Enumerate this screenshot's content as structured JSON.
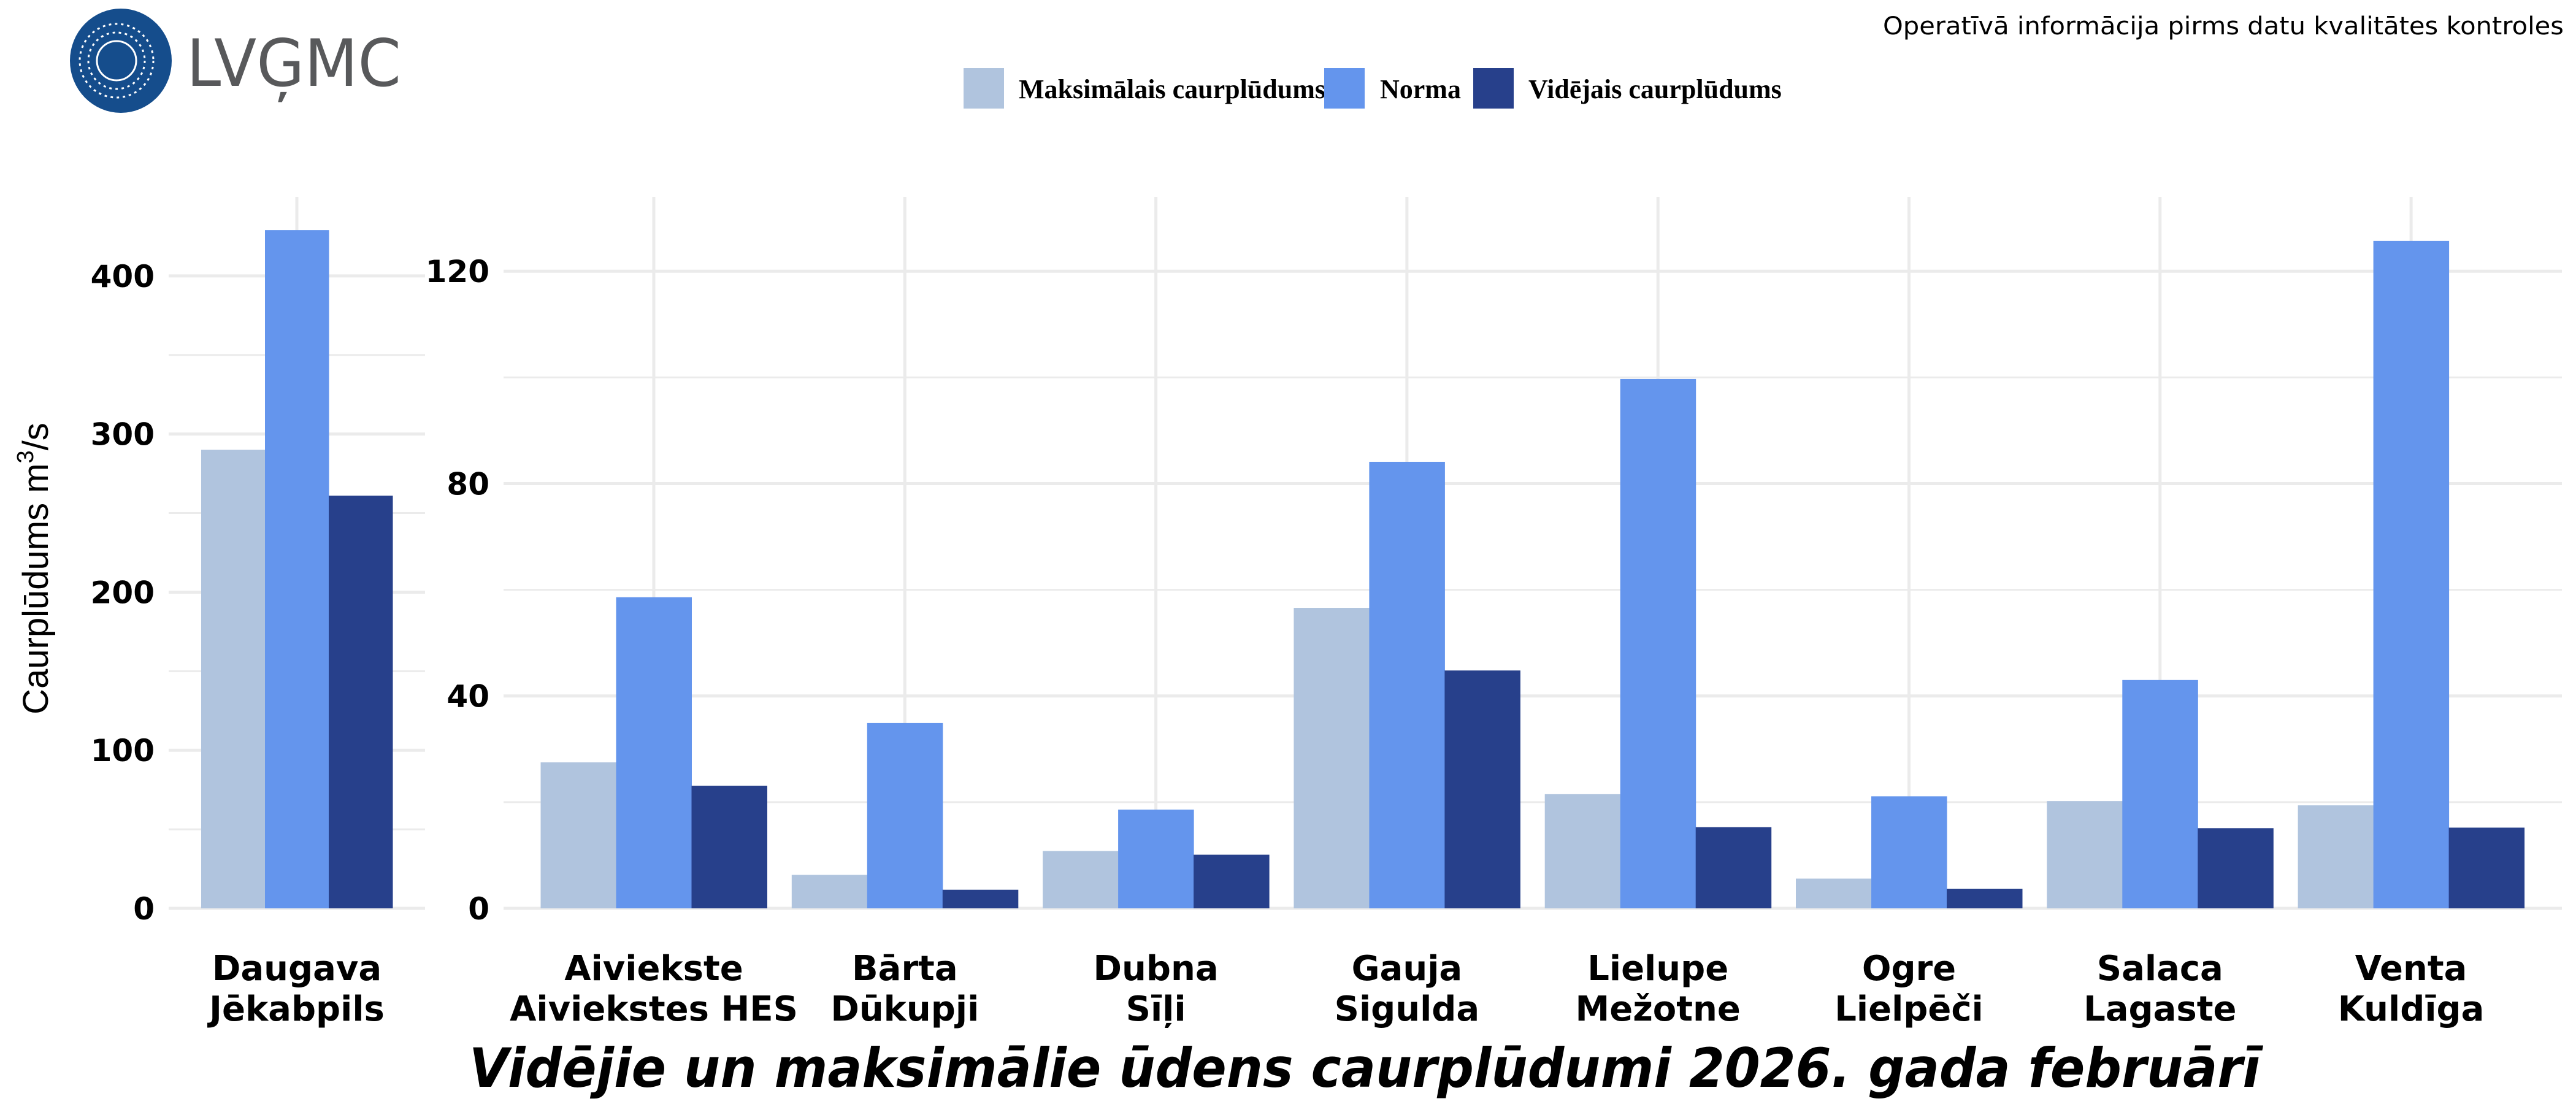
{
  "header": {
    "logo_text": "LVĢMC",
    "note": "Operatīvā informācija pirms datu kvalitātes kontroles"
  },
  "chart_data": {
    "type": "bar",
    "title": "Vidējie un maksimālie ūdens caurplūdumi 2026. gada februārī",
    "ylabel": "Caurplūdums  m³/s",
    "ylabel_parts": {
      "text": "Caurplūdums  m",
      "sup": "3",
      "unit": "/s"
    },
    "legend_placement": "top",
    "grid": true,
    "colors": {
      "max": "#B0C4DE",
      "norm": "#6495ED",
      "mean": "#27408B"
    },
    "series_names": [
      "Maksimālais caurplūdums",
      "Norma",
      "Vidējais caurplūdums"
    ],
    "panels": [
      {
        "ylim": [
          0,
          450
        ],
        "yticks": [
          "0",
          "100",
          "200",
          "300",
          "400"
        ],
        "categories": [
          [
            "Daugava",
            "Jēkabpils"
          ]
        ],
        "series": [
          {
            "name": "Maksimālais caurplūdums",
            "values": [
              290
            ]
          },
          {
            "name": "Norma",
            "values": [
              429
            ]
          },
          {
            "name": "Vidējais caurplūdums",
            "values": [
              261
            ]
          }
        ]
      },
      {
        "ylim": [
          0,
          134
        ],
        "yticks": [
          "0",
          "40",
          "80",
          "120"
        ],
        "categories": [
          [
            "Aiviekste",
            "Aiviekstes HES"
          ],
          [
            "Bārta",
            "Dūkupji"
          ],
          [
            "Dubna",
            "Sīļi"
          ],
          [
            "Gauja",
            "Sigulda"
          ],
          [
            "Lielupe",
            "Mežotne"
          ],
          [
            "Ogre",
            "Lielpēči"
          ],
          [
            "Salaca",
            "Lagaste"
          ],
          [
            "Venta",
            "Kuldīga"
          ]
        ],
        "series": [
          {
            "name": "Maksimālais caurplūdums",
            "values": [
              27.5,
              6.3,
              10.8,
              56.6,
              21.5,
              5.6,
              20.2,
              19.4
            ]
          },
          {
            "name": "Norma",
            "values": [
              58.6,
              34.9,
              18.6,
              84.1,
              99.7,
              21.1,
              43.0,
              125.7
            ]
          },
          {
            "name": "Vidējais caurplūdums",
            "values": [
              23.1,
              3.5,
              10.1,
              44.8,
              15.3,
              3.7,
              15.1,
              15.2
            ]
          }
        ]
      }
    ]
  }
}
